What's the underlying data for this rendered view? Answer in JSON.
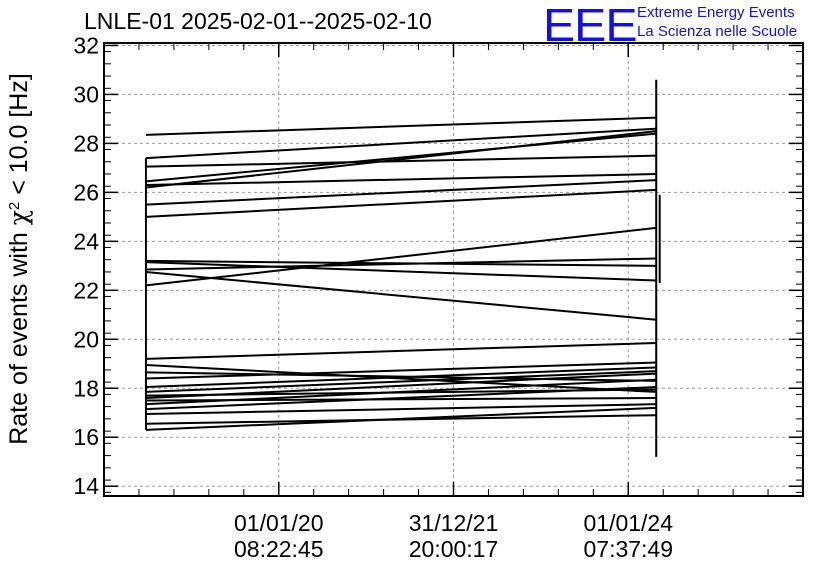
{
  "header": {
    "title": "LNLE-01 2025-02-01--2025-02-10",
    "logo_mark": "EEE",
    "logo_line1": "Extreme Energy Events",
    "logo_line2": "La Scienza nelle Scuole"
  },
  "colors": {
    "brand": "#1010e8",
    "series": "#000000",
    "grid": "#9a9a9a"
  },
  "chart_data": {
    "type": "line",
    "title": "LNLE-01 2025-02-01--2025-02-10",
    "ylabel_prefix": "Rate of events with ",
    "ylabel_symbol": "χ",
    "ylabel_sup": "2",
    "ylabel_suffix": " < 10.0 [Hz]",
    "xlabel": "",
    "ylim": [
      13.6,
      32.1
    ],
    "yticks": [
      14,
      16,
      18,
      20,
      22,
      24,
      26,
      28,
      30,
      32
    ],
    "xlim": [
      0,
      10
    ],
    "xticks": [
      {
        "x": 2.5,
        "date": "01/01/20",
        "time": "08:22:45"
      },
      {
        "x": 5.0,
        "date": "31/12/21",
        "time": "20:00:17"
      },
      {
        "x": 7.5,
        "date": "01/01/24",
        "time": "07:37:49"
      }
    ],
    "grid": true,
    "x_start": 0.6,
    "x_end": 7.9,
    "segments": [
      [
        28.35,
        29.05
      ],
      [
        27.4,
        28.6
      ],
      [
        27.05,
        27.5
      ],
      [
        26.45,
        28.4
      ],
      [
        26.3,
        26.75
      ],
      [
        26.2,
        28.5
      ],
      [
        25.5,
        26.5
      ],
      [
        25.0,
        26.1
      ],
      [
        23.2,
        23.0
      ],
      [
        23.15,
        22.4
      ],
      [
        22.85,
        23.3
      ],
      [
        22.75,
        20.8
      ],
      [
        22.2,
        24.55
      ],
      [
        19.2,
        19.85
      ],
      [
        18.95,
        17.85
      ],
      [
        18.65,
        18.3
      ],
      [
        18.4,
        19.05
      ],
      [
        18.05,
        18.85
      ],
      [
        17.85,
        18.7
      ],
      [
        17.7,
        17.95
      ],
      [
        17.6,
        18.6
      ],
      [
        17.5,
        17.6
      ],
      [
        17.35,
        18.35
      ],
      [
        17.15,
        18.05
      ],
      [
        16.95,
        17.35
      ],
      [
        16.55,
        16.9
      ],
      [
        16.3,
        17.2
      ]
    ],
    "vertical_lines": [
      {
        "x": 0.6,
        "y0": 16.3,
        "y1": 27.4
      },
      {
        "x": 7.9,
        "y0": 15.2,
        "y1": 30.6
      },
      {
        "x": 7.95,
        "y0": 22.3,
        "y1": 25.9
      }
    ]
  }
}
